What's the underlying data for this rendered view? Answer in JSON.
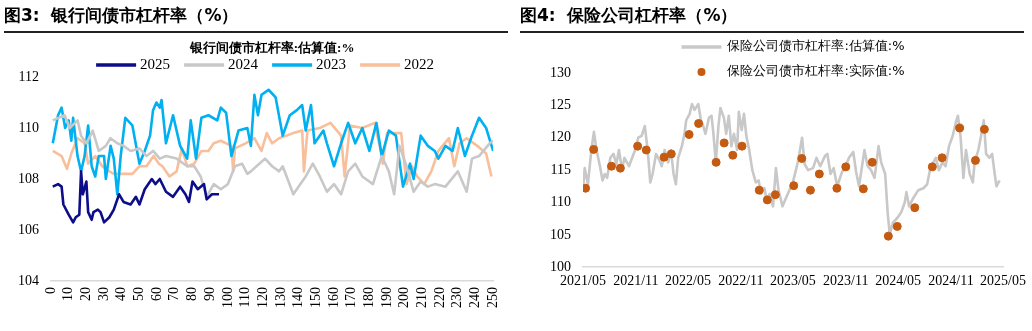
{
  "chart_data": [
    {
      "type": "line",
      "title": "图3:  银行间债市杠杆率（%）",
      "legend_title": "银行间债市杠杆率:估算值:%",
      "legend": "top",
      "grid": false,
      "xlim": [
        0,
        250
      ],
      "xticks": [
        0,
        10,
        20,
        30,
        40,
        50,
        60,
        70,
        80,
        90,
        100,
        110,
        120,
        130,
        140,
        150,
        160,
        170,
        180,
        190,
        200,
        210,
        220,
        230,
        240,
        250
      ],
      "ylim": [
        104,
        112
      ],
      "yticks": [
        104,
        106,
        108,
        110,
        112
      ],
      "series": [
        {
          "name": "2025",
          "color": "#0d0d8a",
          "x": [
            1,
            4,
            6,
            7,
            10,
            12.5,
            14,
            16,
            17,
            18,
            20,
            21,
            23,
            24,
            26.5,
            28,
            30,
            33,
            35.5,
            38.5,
            41,
            45,
            48,
            50,
            53,
            57,
            59,
            61.5,
            65,
            69,
            73,
            76,
            78,
            80,
            83,
            86.5,
            88,
            91,
            95
          ],
          "values": [
            107.7,
            107.8,
            107.7,
            107.0,
            106.6,
            106.3,
            106.5,
            106.6,
            108.3,
            107.4,
            107.9,
            106.7,
            106.4,
            106.7,
            106.8,
            106.7,
            106.3,
            106.5,
            106.8,
            107.4,
            107.1,
            107.0,
            107.3,
            107.0,
            107.6,
            108.0,
            107.8,
            108.0,
            107.5,
            107.3,
            107.7,
            107.4,
            107.1,
            107.9,
            107.6,
            107.8,
            107.2,
            107.4,
            107.4
          ]
        },
        {
          "name": "2024",
          "color": "#c8c8c8",
          "x": [
            1,
            7.7,
            10.6,
            15,
            17,
            20,
            23.6,
            27,
            31,
            33.6,
            37.5,
            41,
            45,
            50,
            54,
            57.7,
            61.5,
            65,
            71,
            77,
            81,
            84.6,
            88,
            92,
            96,
            100,
            104,
            108,
            111,
            113,
            121,
            125,
            129,
            131,
            137,
            141,
            144,
            148,
            152,
            156,
            160,
            164,
            168,
            172,
            176,
            182,
            187,
            191,
            194,
            197,
            201,
            205,
            209,
            213,
            217,
            223,
            230,
            235,
            238,
            242,
            248,
            250
          ],
          "values": [
            110.3,
            110.5,
            110.0,
            110.3,
            109.7,
            109.4,
            109.9,
            109.1,
            109.3,
            109.6,
            109.4,
            109.3,
            109.1,
            109.2,
            108.9,
            109.1,
            108.8,
            108.9,
            108.8,
            108.5,
            108.5,
            108.1,
            107.3,
            107.8,
            107.6,
            107.8,
            108.5,
            108.6,
            108.2,
            108.3,
            108.8,
            108.5,
            108.3,
            108.5,
            107.4,
            107.8,
            108.1,
            108.6,
            108.1,
            107.5,
            107.8,
            107.4,
            108.3,
            108.6,
            108.1,
            107.8,
            108.9,
            108.3,
            107.4,
            109.3,
            108.5,
            107.5,
            107.9,
            107.7,
            107.8,
            107.7,
            108.3,
            107.5,
            108.8,
            108.9,
            109.4,
            109.5
          ]
        },
        {
          "name": "2023",
          "color": "#00b0f0",
          "x": [
            1,
            4,
            6,
            8,
            10,
            11.5,
            12.5,
            15,
            17,
            19,
            21,
            23,
            25,
            27,
            30,
            31,
            33.7,
            35.5,
            37.5,
            39.4,
            42,
            46,
            50,
            53,
            56,
            57.7,
            59.6,
            61.5,
            62.5,
            65,
            69,
            73,
            77,
            79,
            82,
            85,
            89,
            94,
            96,
            99,
            102,
            106,
            111,
            113,
            115,
            117,
            119,
            123,
            127,
            131,
            135,
            139,
            142,
            144,
            147,
            149,
            154,
            156,
            160,
            164,
            168,
            172,
            176,
            180,
            184,
            187,
            191,
            195,
            199,
            203,
            205,
            209,
            213,
            217,
            219,
            223,
            227,
            230,
            234,
            238,
            242,
            246,
            250
          ],
          "values": [
            109.4,
            110.5,
            110.8,
            110.0,
            110.3,
            109.5,
            110.4,
            108.9,
            108.3,
            108.9,
            110.1,
            108.5,
            108.1,
            108.9,
            108.9,
            108.0,
            109.3,
            108.8,
            107.4,
            108.9,
            110.4,
            110.1,
            108.6,
            109.1,
            109.7,
            110.7,
            111.0,
            110.8,
            111.1,
            109.4,
            110.5,
            109.3,
            108.8,
            110.3,
            108.8,
            110.4,
            110.5,
            110.3,
            110.8,
            110.6,
            108.9,
            109.9,
            110.0,
            109.3,
            111.3,
            110.5,
            111.3,
            111.5,
            111.2,
            109.7,
            110.5,
            110.7,
            110.9,
            109.9,
            110.9,
            109.4,
            109.9,
            109.4,
            108.5,
            109.4,
            110.2,
            109.4,
            110.0,
            109.1,
            110.2,
            108.9,
            109.9,
            109.7,
            107.7,
            108.6,
            108.0,
            109.7,
            109.3,
            109.1,
            108.8,
            109.3,
            109.1,
            110.0,
            108.9,
            109.7,
            110.4,
            110.0,
            109.1
          ]
        },
        {
          "name": "2022",
          "color": "#f9be9a",
          "x": [
            1,
            6,
            9,
            11.5,
            15,
            19,
            21,
            25,
            29,
            33,
            35.5,
            38,
            40,
            43,
            46,
            50,
            54,
            58,
            61,
            63,
            67,
            71,
            74,
            77,
            81,
            85,
            89,
            92,
            96,
            102,
            103,
            104,
            110,
            115,
            119,
            122,
            125,
            129,
            137,
            142,
            143,
            145,
            152,
            158,
            164,
            166,
            169,
            176,
            183,
            187,
            187.5,
            190,
            198,
            201,
            204,
            207,
            211,
            215,
            219,
            225,
            228,
            231,
            235,
            241,
            246,
            249
          ],
          "values": [
            109.1,
            108.9,
            108.4,
            109.0,
            109.6,
            109.4,
            108.6,
            108.9,
            108.5,
            108.3,
            108.2,
            108.2,
            108.2,
            108.2,
            108.2,
            108.5,
            108.5,
            108.9,
            108.6,
            108.5,
            108.1,
            108.3,
            109.2,
            108.5,
            108.6,
            109.1,
            109.1,
            109.4,
            109.5,
            109.3,
            108.3,
            109.2,
            109.4,
            109.6,
            109.1,
            109.8,
            109.4,
            109.6,
            109.8,
            109.9,
            108.3,
            109.9,
            110.0,
            110.2,
            109.7,
            108.1,
            110.1,
            110.0,
            110.2,
            108.9,
            108.6,
            109.8,
            109.8,
            107.8,
            108.5,
            108.1,
            107.8,
            108.3,
            109.1,
            109.6,
            108.5,
            109.4,
            109.6,
            109.3,
            109.0,
            108.1
          ]
        }
      ]
    },
    {
      "type": "line",
      "title": "图4:  保险公司杠杆率（%）",
      "legend": "top",
      "grid": false,
      "xlim": [
        "2021-05",
        "2025-05"
      ],
      "xticks": [
        {
          "value": "2021-05",
          "label": "2021/05"
        },
        {
          "value": "2021-11",
          "label": "2021/11"
        },
        {
          "value": "2022-05",
          "label": "2022/05"
        },
        {
          "value": "2022-11",
          "label": "2022/11"
        },
        {
          "value": "2023-05",
          "label": "2023/05"
        },
        {
          "value": "2023-11",
          "label": "2023/11"
        },
        {
          "value": "2024-05",
          "label": "2024/05"
        },
        {
          "value": "2024-11",
          "label": "2024/11"
        },
        {
          "value": "2025-05",
          "label": "2025/05"
        }
      ],
      "ylim": [
        100,
        130
      ],
      "yticks": [
        100,
        105,
        110,
        115,
        120,
        125,
        130
      ],
      "series": [
        {
          "name": "保险公司债市杠杆率:估算值:%",
          "color": "#c8c8c8",
          "x": [
            "2021-05-01",
            "2021-05-07",
            "2021-05-18",
            "2021-05-30",
            "2021-06-08",
            "2021-06-17",
            "2021-06-29",
            "2021-07-08",
            "2021-07-16",
            "2021-07-24",
            "2021-08-04",
            "2021-08-15",
            "2021-08-25",
            "2021-09-03",
            "2021-09-14",
            "2021-09-22",
            "2021-10-08",
            "2021-10-19",
            "2021-11-01",
            "2021-11-09",
            "2021-11-21",
            "2021-12-02",
            "2021-12-12",
            "2021-12-21",
            "2021-12-29",
            "2022-01-10",
            "2022-01-22",
            "2022-01-30",
            "2022-02-09",
            "2022-02-21",
            "2022-03-03",
            "2022-03-12",
            "2022-03-20",
            "2022-03-28",
            "2022-04-10",
            "2022-04-19",
            "2022-04-25",
            "2022-05-07",
            "2022-05-15",
            "2022-05-24",
            "2022-06-06",
            "2022-06-15",
            "2022-06-23",
            "2022-07-01",
            "2022-07-13",
            "2022-07-22",
            "2022-07-28",
            "2022-08-06",
            "2022-08-15",
            "2022-08-22",
            "2022-09-03",
            "2022-09-11",
            "2022-09-20",
            "2022-09-29",
            "2022-10-08",
            "2022-10-19",
            "2022-10-25",
            "2022-11-04",
            "2022-11-12",
            "2022-11-20",
            "2022-11-30",
            "2022-12-11",
            "2022-12-23",
            "2023-01-02",
            "2023-01-10",
            "2023-01-22",
            "2023-01-30",
            "2023-02-09",
            "2023-02-21",
            "2023-03-03",
            "2023-03-12",
            "2023-03-26",
            "2023-04-13",
            "2023-05-01",
            "2023-05-18",
            "2023-06-02",
            "2023-06-11",
            "2023-06-23",
            "2023-07-10",
            "2023-07-22",
            "2023-08-04",
            "2023-08-21",
            "2023-08-29",
            "2023-09-09",
            "2023-09-20",
            "2023-10-02",
            "2023-10-19",
            "2023-11-01",
            "2023-11-12",
            "2023-11-27",
            "2023-12-07",
            "2023-12-17",
            "2024-01-05",
            "2024-01-16",
            "2024-01-28",
            "2024-02-09",
            "2024-02-23",
            "2024-03-03",
            "2024-03-17",
            "2024-03-26",
            "2024-04-02",
            "2024-04-13",
            "2024-04-28",
            "2024-05-12",
            "2024-05-24",
            "2024-05-30",
            "2024-06-08",
            "2024-06-23",
            "2024-07-10",
            "2024-07-28",
            "2024-08-10",
            "2024-08-21",
            "2024-09-09",
            "2024-09-20",
            "2024-10-02",
            "2024-10-13",
            "2024-10-25",
            "2024-11-07",
            "2024-11-18",
            "2024-11-25",
            "2024-12-04",
            "2024-12-14",
            "2024-12-23",
            "2025-01-05",
            "2025-01-16",
            "2025-01-22",
            "2025-02-04",
            "2025-02-15",
            "2025-02-23",
            "2025-03-03",
            "2025-03-14",
            "2025-03-24",
            "2025-04-02",
            "2025-04-08",
            "2025-04-19"
          ],
          "values": [
            111.9,
            115.3,
            112.8,
            118.1,
            120.9,
            118.1,
            115.6,
            113.4,
            114.4,
            113.8,
            116.9,
            117.5,
            115.9,
            118.1,
            115.0,
            116.9,
            115.6,
            116.9,
            118.4,
            120.0,
            120.3,
            121.8,
            118.1,
            113.1,
            114.4,
            117.5,
            116.5,
            115.6,
            118.1,
            116.2,
            118.1,
            114.4,
            112.8,
            116.9,
            118.7,
            120.6,
            122.7,
            123.7,
            125.2,
            124.3,
            125.2,
            122.7,
            121.8,
            120.6,
            123.1,
            123.4,
            120.9,
            116.2,
            121.8,
            124.6,
            123.1,
            120.6,
            123.4,
            118.7,
            120.6,
            118.1,
            124.0,
            121.2,
            123.7,
            120.3,
            118.1,
            115.0,
            113.1,
            113.4,
            111.3,
            112.2,
            110.3,
            111.3,
            109.4,
            115.3,
            111.9,
            109.4,
            111.3,
            113.1,
            116.2,
            120.0,
            115.9,
            115.0,
            115.3,
            116.9,
            115.6,
            117.2,
            117.5,
            114.4,
            115.3,
            112.5,
            114.7,
            115.6,
            116.9,
            117.8,
            114.7,
            112.5,
            118.1,
            115.6,
            115.0,
            113.8,
            118.7,
            116.2,
            114.4,
            108.2,
            105.1,
            106.9,
            107.6,
            108.5,
            110.0,
            111.6,
            109.4,
            110.7,
            111.9,
            112.2,
            112.8,
            115.3,
            116.9,
            115.0,
            116.2,
            115.6,
            118.7,
            120.3,
            122.4,
            123.4,
            120.3,
            113.8,
            118.1,
            114.4,
            113.1,
            116.2,
            118.1,
            120.6,
            122.7,
            117.5,
            116.9,
            117.5,
            114.4,
            112.5,
            113.4
          ]
        },
        {
          "name": "保险公司债市杠杆率:实际值:%",
          "type": "scatter",
          "marker": "circle",
          "color": "#c55a11",
          "x": [
            "2021-05-10",
            "2021-06-07",
            "2021-08-08",
            "2021-09-08",
            "2021-11-07",
            "2021-12-07",
            "2022-02-07",
            "2022-03-04",
            "2022-05-05",
            "2022-06-07",
            "2022-08-07",
            "2022-09-04",
            "2022-10-04",
            "2022-11-05",
            "2023-01-04",
            "2023-02-01",
            "2023-03-01",
            "2023-05-04",
            "2023-06-01",
            "2023-07-01",
            "2023-08-01",
            "2023-10-01",
            "2023-11-01",
            "2024-01-01",
            "2024-02-01",
            "2024-03-28",
            "2024-04-28",
            "2024-06-28",
            "2024-08-28",
            "2024-10-01",
            "2024-12-01",
            "2025-01-25",
            "2025-02-25"
          ],
          "values": [
            112.2,
            118.2,
            115.6,
            115.3,
            118.7,
            118.1,
            117.0,
            117.5,
            120.5,
            122.2,
            116.2,
            119.2,
            117.3,
            118.7,
            111.9,
            110.4,
            111.2,
            112.6,
            116.8,
            111.9,
            114.4,
            112.2,
            115.5,
            112.1,
            116.2,
            104.8,
            106.3,
            109.2,
            115.5,
            116.9,
            121.5,
            116.5,
            121.3
          ]
        }
      ]
    }
  ]
}
